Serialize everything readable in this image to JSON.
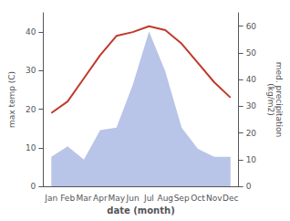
{
  "chart_data": {
    "type": "line",
    "xlabel": "date (month)",
    "ylabel": "max temp (C)",
    "y2label": "med. precipitation\n(kg/m2)",
    "categories": [
      "Jan",
      "Feb",
      "Mar",
      "Apr",
      "May",
      "Jun",
      "Jul",
      "Aug",
      "Sep",
      "Oct",
      "Nov",
      "Dec"
    ],
    "series": [
      {
        "type": "area",
        "axis": "y2",
        "color": "#b8c4e8",
        "values": [
          11,
          15,
          10,
          21,
          22,
          38,
          58,
          43,
          22,
          14,
          11,
          11
        ]
      },
      {
        "type": "line",
        "color": "#c0392b",
        "values": [
          19,
          22,
          28,
          34,
          39,
          40,
          41.5,
          40.5,
          37,
          32,
          27,
          23
        ]
      }
    ],
    "ylim": [
      0,
      45
    ],
    "yticks": [
      0,
      10,
      20,
      30,
      40
    ],
    "y2lim": [
      0,
      65
    ],
    "y2ticks": [
      0,
      10,
      20,
      30,
      40,
      50,
      60
    ],
    "grid": false
  }
}
